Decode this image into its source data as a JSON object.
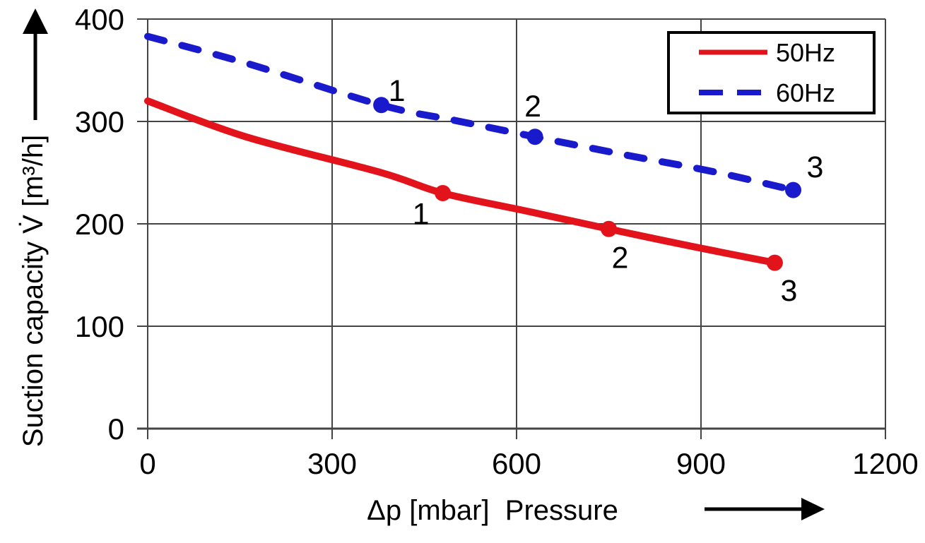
{
  "chart_data": {
    "type": "line",
    "title": "",
    "xlabel": "Δp [mbar]  Pressure",
    "ylabel": "Suction capacity V̇ [m³/h]",
    "xlim": [
      0,
      1200
    ],
    "ylim": [
      0,
      400
    ],
    "xticks": [
      "0",
      "300",
      "600",
      "900",
      "1200"
    ],
    "yticks": [
      "0",
      "100",
      "200",
      "300",
      "400"
    ],
    "grid": true,
    "legend_position": "top-right",
    "axis_arrows": {
      "y": "up-arrow",
      "x": "right-arrow"
    },
    "colors": {
      "grid": "#444444",
      "text": "#000000",
      "legend_border": "#000000"
    },
    "series": [
      {
        "name": "50Hz",
        "color": "#e2131b",
        "line_style": "solid",
        "curve_points": [
          [
            0,
            320
          ],
          [
            160,
            285
          ],
          [
            380,
            250
          ],
          [
            480,
            230
          ],
          [
            620,
            212
          ],
          [
            750,
            195
          ],
          [
            885,
            178
          ],
          [
            1020,
            162
          ]
        ],
        "marked_points": [
          {
            "label": "1",
            "x": 480,
            "y": 230,
            "label_dx": -31,
            "label_dy": 44
          },
          {
            "label": "2",
            "x": 750,
            "y": 195,
            "label_dx": 16,
            "label_dy": 55
          },
          {
            "label": "3",
            "x": 1020,
            "y": 162,
            "label_dx": 20,
            "label_dy": 54
          }
        ]
      },
      {
        "name": "60Hz",
        "color": "#1a1acd",
        "line_style": "dashed",
        "curve_points": [
          [
            0,
            383
          ],
          [
            160,
            357
          ],
          [
            380,
            316
          ],
          [
            500,
            301
          ],
          [
            630,
            285
          ],
          [
            780,
            267
          ],
          [
            920,
            251
          ],
          [
            1050,
            233
          ]
        ],
        "marked_points": [
          {
            "label": "1",
            "x": 380,
            "y": 316,
            "label_dx": 22,
            "label_dy": -6
          },
          {
            "label": "2",
            "x": 630,
            "y": 285,
            "label_dx": -3,
            "label_dy": -29
          },
          {
            "label": "3",
            "x": 1050,
            "y": 233,
            "label_dx": 31,
            "label_dy": -18
          }
        ]
      }
    ]
  }
}
